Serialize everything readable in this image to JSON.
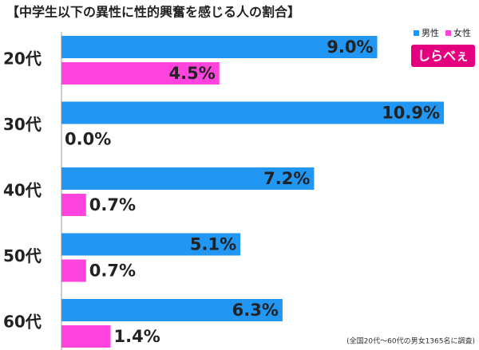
{
  "chart_data": {
    "type": "bar",
    "orientation": "horizontal",
    "title": "【中学生以下の異性に性的興奮を感じる人の割合】",
    "categories": [
      "20代",
      "30代",
      "40代",
      "50代",
      "60代"
    ],
    "series": [
      {
        "name": "男性",
        "color": "#2196f3",
        "values": [
          9.0,
          10.9,
          7.2,
          5.1,
          6.3
        ],
        "value_labels": [
          "9.0%",
          "10.9%",
          "7.2%",
          "5.1%",
          "6.3%"
        ]
      },
      {
        "name": "女性",
        "color": "#ff44dd",
        "values": [
          4.5,
          0.0,
          0.7,
          0.7,
          1.4
        ],
        "value_labels": [
          "4.5%",
          "0.0%",
          "0.7%",
          "0.7%",
          "1.4%"
        ]
      }
    ],
    "xlim": [
      0,
      11.9
    ],
    "logo": "しらべぇ",
    "note": "(全国20代〜60代の男女1365名に調査)"
  }
}
